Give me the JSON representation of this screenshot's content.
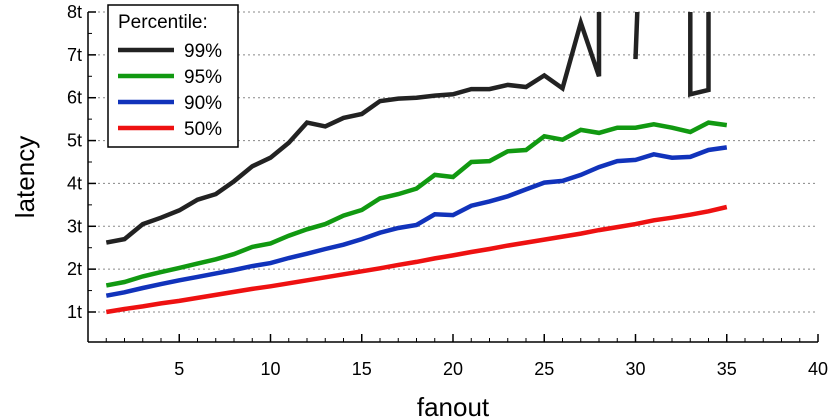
{
  "chart_data": {
    "type": "line",
    "xlabel": "fanout",
    "ylabel": "latency",
    "xlim": [
      0,
      40
    ],
    "ylim": [
      0.3,
      8
    ],
    "xticks": [
      5,
      10,
      15,
      20,
      25,
      30,
      35,
      40
    ],
    "xtick_labels": [
      "5",
      "10",
      "15",
      "20",
      "25",
      "30",
      "35",
      "40"
    ],
    "yticks": [
      1,
      2,
      3,
      4,
      5,
      6,
      7,
      8
    ],
    "ytick_labels": [
      "1t",
      "2t",
      "3t",
      "4t",
      "5t",
      "6t",
      "7t",
      "8t"
    ],
    "grid": "horizontal dotted",
    "legend": {
      "title": "Percentile:",
      "placement": "top-left"
    },
    "series": [
      {
        "name": "99%",
        "color": "#222222",
        "x": [
          1,
          2,
          3,
          4,
          5,
          6,
          7,
          8,
          9,
          10,
          11,
          12,
          13,
          14,
          15,
          16,
          17,
          18,
          19,
          20,
          21,
          22,
          23,
          24,
          25,
          26,
          27,
          28,
          28,
          null,
          30,
          30.1,
          null,
          33,
          33,
          34,
          34
        ],
        "y": [
          2.62,
          2.7,
          3.05,
          3.2,
          3.37,
          3.62,
          3.75,
          4.05,
          4.4,
          4.6,
          4.95,
          5.42,
          5.33,
          5.53,
          5.62,
          5.92,
          5.98,
          6.0,
          6.05,
          6.08,
          6.2,
          6.2,
          6.3,
          6.25,
          6.52,
          6.22,
          7.75,
          6.5,
          8.0,
          null,
          6.9,
          8.0,
          null,
          8.0,
          6.08,
          6.18,
          8.0
        ]
      },
      {
        "name": "95%",
        "color": "#119911",
        "x": [
          1,
          2,
          3,
          4,
          5,
          6,
          7,
          8,
          9,
          10,
          11,
          12,
          13,
          14,
          15,
          16,
          17,
          18,
          19,
          20,
          21,
          22,
          23,
          24,
          25,
          26,
          27,
          28,
          29,
          30,
          31,
          32,
          33,
          34,
          35
        ],
        "y": [
          1.62,
          1.7,
          1.83,
          1.93,
          2.03,
          2.13,
          2.23,
          2.35,
          2.52,
          2.6,
          2.78,
          2.93,
          3.05,
          3.25,
          3.38,
          3.65,
          3.75,
          3.88,
          4.2,
          4.15,
          4.5,
          4.52,
          4.75,
          4.78,
          5.1,
          5.02,
          5.25,
          5.18,
          5.3,
          5.3,
          5.38,
          5.3,
          5.2,
          5.42,
          5.36
        ]
      },
      {
        "name": "90%",
        "color": "#1133bb",
        "x": [
          1,
          2,
          3,
          4,
          5,
          6,
          7,
          8,
          9,
          10,
          11,
          12,
          13,
          14,
          15,
          16,
          17,
          18,
          19,
          20,
          21,
          22,
          23,
          24,
          25,
          26,
          27,
          28,
          29,
          30,
          31,
          32,
          33,
          34,
          35
        ],
        "y": [
          1.38,
          1.46,
          1.56,
          1.65,
          1.74,
          1.82,
          1.9,
          1.98,
          2.07,
          2.14,
          2.26,
          2.36,
          2.47,
          2.57,
          2.7,
          2.85,
          2.96,
          3.03,
          3.28,
          3.26,
          3.48,
          3.58,
          3.7,
          3.86,
          4.02,
          4.06,
          4.2,
          4.38,
          4.52,
          4.55,
          4.68,
          4.6,
          4.62,
          4.78,
          4.84
        ]
      },
      {
        "name": "50%",
        "color": "#ee1111",
        "x": [
          1,
          2,
          3,
          4,
          5,
          6,
          7,
          8,
          9,
          10,
          11,
          12,
          13,
          14,
          15,
          16,
          17,
          18,
          19,
          20,
          21,
          22,
          23,
          24,
          25,
          26,
          27,
          28,
          29,
          30,
          31,
          32,
          33,
          34,
          35
        ],
        "y": [
          1.0,
          1.07,
          1.13,
          1.2,
          1.26,
          1.33,
          1.4,
          1.47,
          1.54,
          1.6,
          1.67,
          1.74,
          1.81,
          1.88,
          1.95,
          2.02,
          2.1,
          2.17,
          2.25,
          2.32,
          2.4,
          2.47,
          2.55,
          2.62,
          2.69,
          2.76,
          2.83,
          2.91,
          2.98,
          3.05,
          3.14,
          3.2,
          3.27,
          3.35,
          3.45
        ]
      }
    ]
  }
}
